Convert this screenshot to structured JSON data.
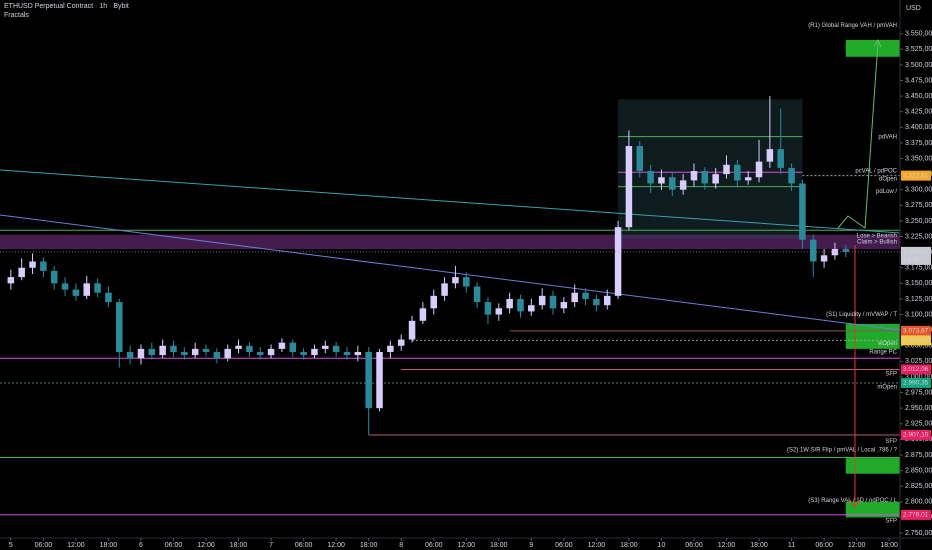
{
  "chart_data": {
    "type": "candlestick",
    "title": "ETHUSD Perpetual Contract · 1h · Bybit",
    "subtitle": "Fractals",
    "currency": "USD",
    "up_color": "#d9ccff",
    "down_color": "#2a8a99",
    "xlim": [
      -2,
      164
    ],
    "ylim": [
      2742,
      3604
    ],
    "candles_columns": [
      "hour",
      "open",
      "high",
      "low",
      "close"
    ],
    "candles": [
      [
        0,
        3150,
        3172,
        3140,
        3160
      ],
      [
        2,
        3160,
        3190,
        3155,
        3175
      ],
      [
        4,
        3175,
        3198,
        3165,
        3185
      ],
      [
        6,
        3185,
        3192,
        3160,
        3170
      ],
      [
        8,
        3170,
        3178,
        3140,
        3150
      ],
      [
        10,
        3150,
        3160,
        3130,
        3140
      ],
      [
        12,
        3140,
        3150,
        3122,
        3130
      ],
      [
        14,
        3130,
        3162,
        3125,
        3150
      ],
      [
        16,
        3150,
        3158,
        3128,
        3135
      ],
      [
        18,
        3135,
        3145,
        3112,
        3120
      ],
      [
        20,
        3120,
        3125,
        3015,
        3040
      ],
      [
        22,
        3040,
        3050,
        3020,
        3030
      ],
      [
        24,
        3030,
        3052,
        3020,
        3045
      ],
      [
        26,
        3045,
        3055,
        3028,
        3035
      ],
      [
        28,
        3035,
        3060,
        3030,
        3050
      ],
      [
        30,
        3050,
        3058,
        3032,
        3040
      ],
      [
        32,
        3040,
        3048,
        3028,
        3035
      ],
      [
        34,
        3035,
        3055,
        3030,
        3045
      ],
      [
        36,
        3045,
        3052,
        3033,
        3040
      ],
      [
        38,
        3040,
        3046,
        3022,
        3030
      ],
      [
        40,
        3030,
        3052,
        3025,
        3045
      ],
      [
        42,
        3045,
        3060,
        3038,
        3050
      ],
      [
        44,
        3050,
        3056,
        3032,
        3040
      ],
      [
        46,
        3040,
        3048,
        3028,
        3035
      ],
      [
        48,
        3035,
        3052,
        3030,
        3045
      ],
      [
        50,
        3045,
        3062,
        3040,
        3055
      ],
      [
        52,
        3055,
        3060,
        3032,
        3040
      ],
      [
        54,
        3040,
        3046,
        3028,
        3035
      ],
      [
        56,
        3035,
        3052,
        3030,
        3045
      ],
      [
        58,
        3045,
        3058,
        3038,
        3050
      ],
      [
        60,
        3050,
        3056,
        3032,
        3040
      ],
      [
        62,
        3040,
        3048,
        3028,
        3035
      ],
      [
        64,
        3035,
        3050,
        3025,
        3040
      ],
      [
        66,
        3040,
        3048,
        2907,
        2950
      ],
      [
        68,
        2950,
        3045,
        2945,
        3040
      ],
      [
        70,
        3040,
        3058,
        3030,
        3050
      ],
      [
        72,
        3050,
        3068,
        3042,
        3060
      ],
      [
        74,
        3060,
        3098,
        3055,
        3090
      ],
      [
        76,
        3090,
        3120,
        3085,
        3110
      ],
      [
        78,
        3110,
        3140,
        3100,
        3130
      ],
      [
        80,
        3130,
        3160,
        3122,
        3150
      ],
      [
        82,
        3150,
        3178,
        3142,
        3160
      ],
      [
        84,
        3160,
        3168,
        3135,
        3145
      ],
      [
        86,
        3145,
        3152,
        3110,
        3120
      ],
      [
        88,
        3120,
        3128,
        3085,
        3100
      ],
      [
        90,
        3100,
        3118,
        3090,
        3110
      ],
      [
        92,
        3110,
        3135,
        3102,
        3125
      ],
      [
        94,
        3125,
        3132,
        3095,
        3105
      ],
      [
        96,
        3105,
        3125,
        3098,
        3115
      ],
      [
        98,
        3115,
        3142,
        3108,
        3130
      ],
      [
        100,
        3130,
        3138,
        3100,
        3110
      ],
      [
        102,
        3110,
        3128,
        3102,
        3120
      ],
      [
        104,
        3120,
        3148,
        3112,
        3135
      ],
      [
        106,
        3135,
        3142,
        3115,
        3125
      ],
      [
        108,
        3125,
        3132,
        3105,
        3115
      ],
      [
        110,
        3115,
        3140,
        3108,
        3130
      ],
      [
        112,
        3130,
        3250,
        3125,
        3240
      ],
      [
        114,
        3240,
        3395,
        3235,
        3370
      ],
      [
        116,
        3370,
        3378,
        3320,
        3330
      ],
      [
        118,
        3330,
        3340,
        3295,
        3310
      ],
      [
        120,
        3310,
        3332,
        3300,
        3320
      ],
      [
        122,
        3320,
        3328,
        3290,
        3300
      ],
      [
        124,
        3300,
        3325,
        3292,
        3315
      ],
      [
        126,
        3315,
        3342,
        3305,
        3330
      ],
      [
        128,
        3330,
        3336,
        3300,
        3310
      ],
      [
        130,
        3310,
        3335,
        3302,
        3325
      ],
      [
        132,
        3325,
        3355,
        3318,
        3340
      ],
      [
        134,
        3340,
        3348,
        3305,
        3315
      ],
      [
        136,
        3315,
        3330,
        3308,
        3320
      ],
      [
        138,
        3320,
        3380,
        3312,
        3345
      ],
      [
        140,
        3345,
        3450,
        3335,
        3365
      ],
      [
        142,
        3365,
        3430,
        3325,
        3335
      ],
      [
        144,
        3335,
        3342,
        3298,
        3310
      ],
      [
        146,
        3310,
        3316,
        3205,
        3220
      ],
      [
        148,
        3220,
        3228,
        3160,
        3185
      ],
      [
        150,
        3185,
        3205,
        3175,
        3195
      ],
      [
        152,
        3195,
        3215,
        3188,
        3205
      ],
      [
        154,
        3205,
        3212,
        3192,
        3200.44
      ]
    ],
    "xticks": [
      {
        "value": 0,
        "label": "5"
      },
      {
        "value": 6,
        "label": "06:00"
      },
      {
        "value": 12,
        "label": "12:00"
      },
      {
        "value": 18,
        "label": "18:00"
      },
      {
        "value": 24,
        "label": "6"
      },
      {
        "value": 30,
        "label": "06:00"
      },
      {
        "value": 36,
        "label": "12:00"
      },
      {
        "value": 42,
        "label": "18:00"
      },
      {
        "value": 48,
        "label": "7"
      },
      {
        "value": 54,
        "label": "06:00"
      },
      {
        "value": 60,
        "label": "12:00"
      },
      {
        "value": 66,
        "label": "18:00"
      },
      {
        "value": 72,
        "label": "8"
      },
      {
        "value": 78,
        "label": "06:00"
      },
      {
        "value": 84,
        "label": "12:00"
      },
      {
        "value": 90,
        "label": "18:00"
      },
      {
        "value": 96,
        "label": "9"
      },
      {
        "value": 102,
        "label": "06:00"
      },
      {
        "value": 108,
        "label": "12:00"
      },
      {
        "value": 114,
        "label": "18:00"
      },
      {
        "value": 120,
        "label": "10"
      },
      {
        "value": 126,
        "label": "06:00"
      },
      {
        "value": 132,
        "label": "12:00"
      },
      {
        "value": 138,
        "label": "18:00"
      },
      {
        "value": 144,
        "label": "11"
      },
      {
        "value": 150,
        "label": "06:00"
      },
      {
        "value": 156,
        "label": "12:00"
      },
      {
        "value": 162,
        "label": "18:00"
      }
    ],
    "yticks": [
      {
        "value": 2750,
        "label": "2.750,00"
      },
      {
        "value": 2775,
        "label": "2.775,00"
      },
      {
        "value": 2800,
        "label": "2.800,00"
      },
      {
        "value": 2825,
        "label": "2.825,00"
      },
      {
        "value": 2850,
        "label": "2.850,00"
      },
      {
        "value": 2875,
        "label": "2.875,00"
      },
      {
        "value": 2900,
        "label": "2.900,00"
      },
      {
        "value": 2925,
        "label": "2.925,00"
      },
      {
        "value": 2950,
        "label": "2.950,00"
      },
      {
        "value": 2975,
        "label": "2.975,00"
      },
      {
        "value": 3000,
        "label": "3.000,00"
      },
      {
        "value": 3025,
        "label": "3.025,00"
      },
      {
        "value": 3050,
        "label": "3.050,00"
      },
      {
        "value": 3075,
        "label": "3.075,00"
      },
      {
        "value": 3100,
        "label": "3.100,00"
      },
      {
        "value": 3125,
        "label": "3.125,00"
      },
      {
        "value": 3150,
        "label": "3.150,00"
      },
      {
        "value": 3175,
        "label": "3.175,00"
      },
      {
        "value": 3200,
        "label": "3.200,00"
      },
      {
        "value": 3225,
        "label": "3.225,00"
      },
      {
        "value": 3250,
        "label": "3.250,00"
      },
      {
        "value": 3275,
        "label": "3.275,00"
      },
      {
        "value": 3300,
        "label": "3.300,00"
      },
      {
        "value": 3325,
        "label": "3.325,00"
      },
      {
        "value": 3350,
        "label": "3.350,00"
      },
      {
        "value": 3375,
        "label": "3.375,00"
      },
      {
        "value": 3400,
        "label": "3.400,00"
      },
      {
        "value": 3425,
        "label": "3.425,00"
      },
      {
        "value": 3450,
        "label": "3.450,00"
      },
      {
        "value": 3475,
        "label": "3.475,00"
      },
      {
        "value": 3500,
        "label": "3.500,00"
      },
      {
        "value": 3525,
        "label": "3.525,00"
      },
      {
        "value": 3550,
        "label": "3.550,00"
      }
    ],
    "last_price": {
      "value": 3200.44,
      "label": "3.200,44",
      "countdown": "13:48"
    },
    "price_labels": [
      {
        "value": 3322.61,
        "label": "3.322,61",
        "color": "#f5a623"
      },
      {
        "value": 3073.87,
        "label": "3.073,87",
        "color": "#e8542a"
      },
      {
        "value": 3058.62,
        "label": "3.058,62",
        "color": "#f5c842"
      },
      {
        "value": 3012.06,
        "label": "3.012,06",
        "color": "#e91e63"
      },
      {
        "value": 2990.35,
        "label": "2.990,35",
        "color": "#14a37f"
      },
      {
        "value": 2907.1,
        "label": "2.907,10",
        "color": "#e91e63"
      },
      {
        "value": 2779.01,
        "label": "2.779,01",
        "color": "#e91e63"
      }
    ],
    "levels": [
      {
        "value": 3235,
        "from": -2,
        "color": "#4caf50"
      },
      {
        "value": 3030,
        "from": -2,
        "color": "#d64fe6"
      },
      {
        "value": 2871,
        "from": -2,
        "color": "#4caf50"
      },
      {
        "value": 2779.01,
        "from": -2,
        "color": "#d64fe6"
      },
      {
        "value": 2990.35,
        "from": -2,
        "color": "#5c7a7a",
        "dash": true
      },
      {
        "value": 3073.87,
        "from": 92,
        "color": "#8a5a5a"
      },
      {
        "value": 3058.62,
        "from": 74,
        "color": "#a0a0a0",
        "dash": true
      },
      {
        "value": 3012.06,
        "from": 72,
        "color": "#c2577a"
      },
      {
        "value": 2907.1,
        "from": 66,
        "color": "#c2577a"
      },
      {
        "value": 3322.61,
        "from": 146,
        "color": "#a0a0a0",
        "dash": true
      },
      {
        "value": 3385,
        "from": 112,
        "to": 146,
        "color": "#4caf50"
      },
      {
        "value": 3328,
        "from": 112,
        "to": 146,
        "color": "#d64fe6"
      },
      {
        "value": 3305,
        "from": 112,
        "to": 146,
        "color": "#4caf50"
      }
    ],
    "zones": [
      {
        "from_value": 3205,
        "to_value": 3228,
        "from": -2,
        "color": "rgba(150,60,170,0.45)"
      },
      {
        "from_value": 3222,
        "to_value": 3445,
        "from": 112,
        "to": 146,
        "color": "rgba(40,80,90,0.35)"
      },
      {
        "from_value": 3513,
        "to_value": 3540,
        "from": 154,
        "color": "#1faa2a"
      },
      {
        "from_value": 3045,
        "to_value": 3085,
        "from": 154,
        "color": "#1faa2a"
      },
      {
        "from_value": 2845,
        "to_value": 2870,
        "from": 154,
        "color": "#1faa2a"
      },
      {
        "from_value": 2775,
        "to_value": 2800,
        "from": 154,
        "color": "#1faa2a"
      }
    ],
    "annotations": [
      {
        "value": 3563,
        "text": "(R1) Global Range VAH / pmVAH"
      },
      {
        "value": 3385,
        "text": "pdVAH"
      },
      {
        "value": 3330,
        "text": "pcVAL / pdPOC"
      },
      {
        "value": 3317,
        "text": "dOpen",
        "color": "#c9873a"
      },
      {
        "value": 3297,
        "text": "pdLow /"
      },
      {
        "value": 3226,
        "text": "Lose > Bearish"
      },
      {
        "value": 3216,
        "text": "Claim > Bullish"
      },
      {
        "value": 3100,
        "text": "(S1) Liquidity / mVWAP / T"
      },
      {
        "value": 3054,
        "text": "wOpen"
      },
      {
        "value": 3040,
        "text": "Range PC"
      },
      {
        "value": 3005,
        "text": "SFP",
        "color": "#4caf50"
      },
      {
        "value": 2984,
        "text": "mOpen",
        "color": "#2a8a99"
      },
      {
        "value": 2897,
        "text": "SFP",
        "color": "#4caf50"
      },
      {
        "value": 2883,
        "text": "(S2) 1W S/R Flip / pmVAL / Local .786 / ?"
      },
      {
        "value": 2802,
        "text": "(S3) Range VAL / 1D / ndPOC / L"
      },
      {
        "value": 2769,
        "text": "SFP",
        "color": "#4caf50"
      }
    ]
  }
}
